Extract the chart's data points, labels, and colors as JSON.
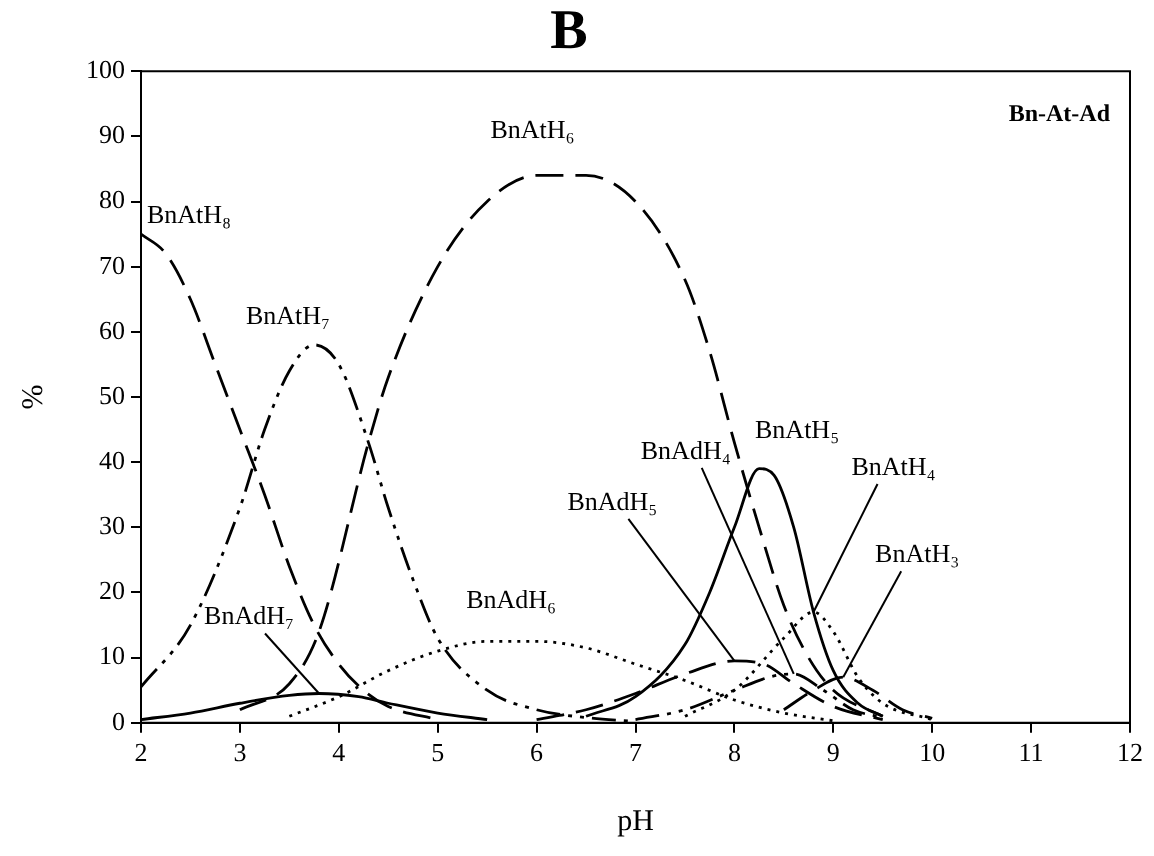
{
  "chart_data": {
    "type": "line",
    "title": "B",
    "xlabel": "pH",
    "ylabel": "%",
    "annotations": [
      "Bn-At-Ad"
    ],
    "xlim": [
      2,
      12
    ],
    "xticks": [
      2,
      3,
      4,
      5,
      6,
      7,
      8,
      9,
      10,
      11,
      12
    ],
    "ylim": [
      0,
      100
    ],
    "yticks": [
      0,
      10,
      20,
      30,
      40,
      50,
      60,
      70,
      80,
      90,
      100
    ],
    "grid": false,
    "legend": false,
    "marker": "none",
    "series": [
      {
        "name": "BnAtH₈",
        "color": "#000000",
        "line_style": "dashed",
        "x": [
          2,
          2.25,
          2.5,
          2.75,
          3,
          3.25,
          3.5,
          3.75,
          4,
          4.25,
          4.5,
          5
        ],
        "values": [
          75,
          72,
          65,
          55,
          45,
          35,
          24,
          15,
          9,
          5,
          2.5,
          0.5
        ]
      },
      {
        "name": "BnAtH₇",
        "color": "#000000",
        "line_style": "dashdot",
        "x": [
          2,
          2.5,
          3,
          3.25,
          3.5,
          3.75,
          4,
          4.3,
          4.5,
          4.75,
          5,
          5.5,
          6,
          6.5,
          7
        ],
        "values": [
          5.5,
          15,
          33,
          45,
          54,
          58,
          55,
          43,
          33,
          22,
          13,
          5,
          2,
          0.8,
          0.2
        ]
      },
      {
        "name": "BnAtH₆",
        "color": "#000000",
        "line_style": "dashed",
        "x": [
          3,
          3.5,
          3.8,
          4.3,
          4.5,
          5,
          5.5,
          6,
          6.5,
          7,
          7.5,
          7.75,
          8,
          8.25,
          8.5,
          8.75,
          9,
          9.5
        ],
        "values": [
          2,
          6,
          14,
          43,
          53,
          70,
          80,
          84,
          84,
          80,
          68,
          57,
          43,
          30,
          18,
          10,
          5,
          1
        ]
      },
      {
        "name": "BnAtH₅",
        "color": "#000000",
        "line_style": "solid",
        "x": [
          6.5,
          7,
          7.5,
          7.75,
          8,
          8.25,
          8.4,
          8.6,
          8.8,
          9,
          9.25,
          9.5
        ],
        "values": [
          1,
          4,
          12,
          20,
          30,
          39,
          38,
          30,
          17,
          8,
          3,
          1
        ]
      },
      {
        "name": "BnAtH₄",
        "color": "#000000",
        "line_style": "dotted",
        "x": [
          7.5,
          8,
          8.5,
          8.8,
          9,
          9.25,
          9.5,
          10
        ],
        "values": [
          1,
          5,
          13,
          17,
          14,
          7,
          3,
          0.5
        ]
      },
      {
        "name": "BnAtH₃",
        "color": "#000000",
        "line_style": "dashed",
        "x": [
          8.5,
          8.8,
          9.1,
          9.4,
          9.7,
          10
        ],
        "values": [
          2,
          5,
          7,
          5,
          2,
          0.7
        ]
      },
      {
        "name": "BnAdH₇",
        "color": "#000000",
        "line_style": "solid",
        "x": [
          2,
          2.5,
          3,
          3.5,
          3.8,
          4.2,
          4.5,
          5,
          5.5
        ],
        "values": [
          0.5,
          1.5,
          3,
          4.2,
          4.5,
          4,
          3,
          1.5,
          0.5
        ]
      },
      {
        "name": "BnAdH₆",
        "color": "#000000",
        "line_style": "dotted",
        "x": [
          3.5,
          4,
          4.5,
          5,
          5.5,
          6,
          6.5,
          7,
          7.5,
          8,
          8.5,
          9
        ],
        "values": [
          1,
          4,
          8,
          11,
          12.5,
          12.5,
          11.5,
          9,
          6.5,
          3.5,
          1.5,
          0.3
        ]
      },
      {
        "name": "BnAdH₅",
        "color": "#000000",
        "line_style": "dashed",
        "x": [
          6,
          6.5,
          7,
          7.5,
          8,
          8.3,
          8.6,
          9,
          9.5
        ],
        "values": [
          0.5,
          2,
          4.5,
          7.5,
          9.5,
          9,
          6,
          2.5,
          0.5
        ]
      },
      {
        "name": "BnAdH₄",
        "color": "#000000",
        "line_style": "dashdot",
        "x": [
          7,
          7.5,
          8,
          8.4,
          8.6,
          8.9,
          9.2,
          9.5
        ],
        "values": [
          0.5,
          2,
          5,
          7.2,
          7.5,
          5,
          2,
          0.8
        ]
      }
    ]
  }
}
